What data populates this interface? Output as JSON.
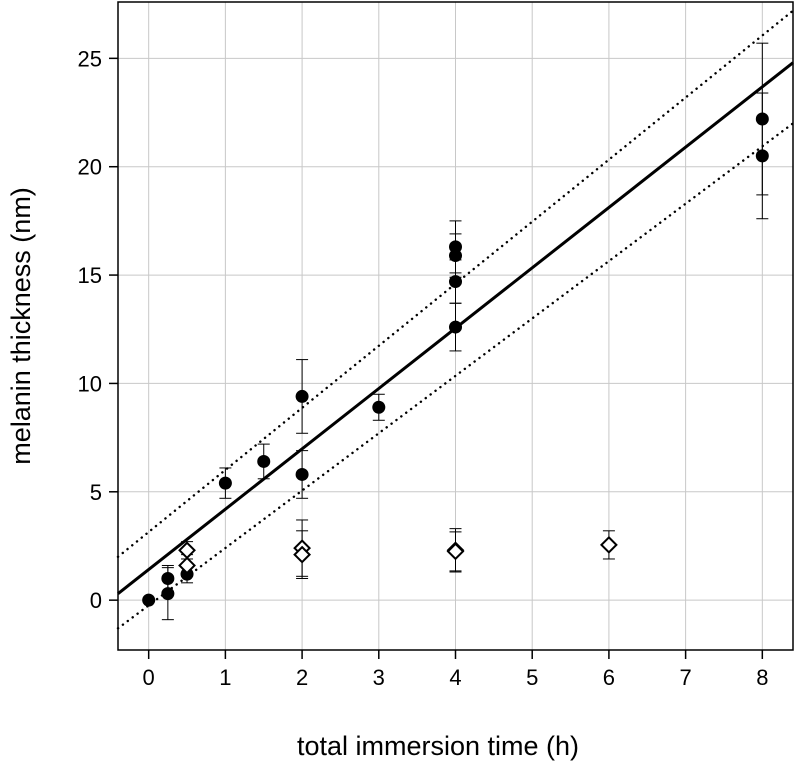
{
  "chart_data": {
    "type": "scatter",
    "title": "",
    "xlabel": "total immersion time (h)",
    "ylabel": "melanin thickness  (nm)",
    "xlim": [
      -0.4,
      8.4
    ],
    "ylim": [
      -2.3,
      27.6
    ],
    "xticks": [
      0,
      1,
      2,
      3,
      4,
      5,
      6,
      7,
      8
    ],
    "yticks": [
      0,
      5,
      10,
      15,
      20,
      25
    ],
    "grid": true,
    "series": [
      {
        "name": "filled circles",
        "marker": "circle-filled",
        "color": "#000000",
        "points": [
          {
            "x": 0,
            "y": 0,
            "err": 0
          },
          {
            "x": 0.25,
            "y": 1.0,
            "err": 0.6
          },
          {
            "x": 0.25,
            "y": 0.3,
            "err": 1.2
          },
          {
            "x": 0.5,
            "y": 1.2,
            "err": 0.4
          },
          {
            "x": 1,
            "y": 5.4,
            "err": 0.7
          },
          {
            "x": 1.5,
            "y": 6.4,
            "err": 0.8
          },
          {
            "x": 2,
            "y": 9.4,
            "err": 1.7
          },
          {
            "x": 2,
            "y": 5.8,
            "err": 1.1
          },
          {
            "x": 3,
            "y": 8.9,
            "err": 0.6
          },
          {
            "x": 4,
            "y": 16.3,
            "err": 1.2
          },
          {
            "x": 4,
            "y": 15.9,
            "err": 1.0
          },
          {
            "x": 4,
            "y": 14.7,
            "err": 1.0
          },
          {
            "x": 4,
            "y": 12.6,
            "err": 1.1
          },
          {
            "x": 8,
            "y": 22.2,
            "err": 3.5
          },
          {
            "x": 8,
            "y": 20.5,
            "err": 2.9
          }
        ]
      },
      {
        "name": "open diamonds",
        "marker": "diamond-open",
        "color": "#000000",
        "points": [
          {
            "x": 0.5,
            "y": 2.3,
            "err": 0.4
          },
          {
            "x": 0.5,
            "y": 1.6,
            "err": 0.5
          },
          {
            "x": 2,
            "y": 2.4,
            "err": 1.3
          },
          {
            "x": 2,
            "y": 2.1,
            "err": 1.1
          },
          {
            "x": 4,
            "y": 2.3,
            "err": 1.0
          },
          {
            "x": 4,
            "y": 2.25,
            "err": 0.9
          },
          {
            "x": 6,
            "y": 2.55,
            "err": 0.65
          }
        ]
      }
    ],
    "fit_lines": [
      {
        "name": "linear fit",
        "style": "solid",
        "x": [
          -0.4,
          8.4
        ],
        "y": [
          0.3,
          24.8
        ]
      },
      {
        "name": "upper confidence band",
        "style": "dotted",
        "x": [
          -0.4,
          8.4
        ],
        "y": [
          2.0,
          27.2
        ]
      },
      {
        "name": "lower confidence band",
        "style": "dotted",
        "x": [
          -0.4,
          8.4
        ],
        "y": [
          -1.3,
          22.0
        ]
      }
    ]
  }
}
